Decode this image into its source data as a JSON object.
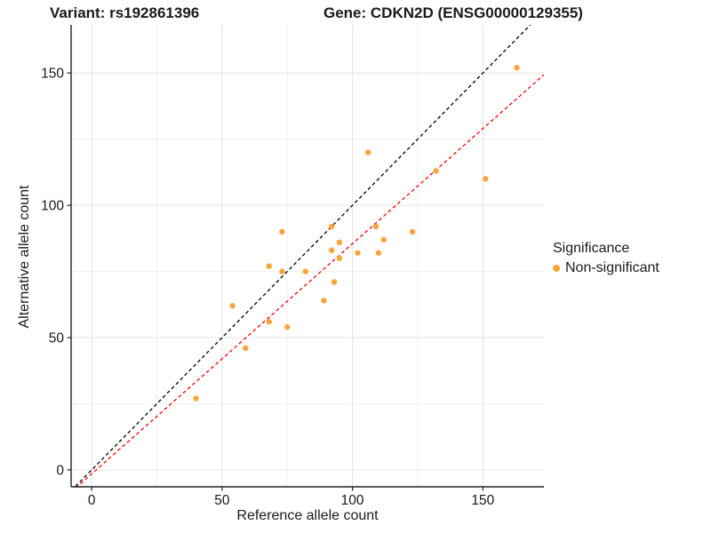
{
  "titles": {
    "variant": "Variant: rs192861396",
    "gene": "Gene: CDKN2D (ENSG00000129355)"
  },
  "legend": {
    "title": "Significance",
    "items": [
      {
        "label": "Non-significant",
        "color": "#FAA43A"
      }
    ]
  },
  "colors": {
    "point": "#FAA43A",
    "identity_line": "#000000",
    "fit_line": "#FF0000",
    "major_grid": "#e4e4e4",
    "minor_grid": "#f0f0f0",
    "axis_line": "#222222",
    "text": "#1a1a1a"
  },
  "chart_data": {
    "type": "scatter",
    "title": "Variant: rs192861396 | Gene: CDKN2D (ENSG00000129355)",
    "xlabel": "Reference allele count",
    "ylabel": "Alternative allele count",
    "xlim": [
      -7.9,
      173.4
    ],
    "ylim": [
      -6.4,
      168.2
    ],
    "x_ticks": [
      0,
      50,
      100,
      150
    ],
    "x_minor": [
      25,
      75,
      125
    ],
    "y_ticks": [
      0,
      50,
      100,
      150
    ],
    "y_minor": [
      25,
      75,
      125
    ],
    "grid": true,
    "legend_position": "right",
    "series": [
      {
        "name": "Non-significant",
        "color": "#FAA43A",
        "points": [
          [
            40,
            27
          ],
          [
            54,
            62
          ],
          [
            59,
            46
          ],
          [
            68,
            56
          ],
          [
            75,
            54
          ],
          [
            68,
            77
          ],
          [
            73,
            75
          ],
          [
            82,
            75
          ],
          [
            73,
            90
          ],
          [
            93,
            71
          ],
          [
            89,
            64
          ],
          [
            92,
            92
          ],
          [
            95,
            86
          ],
          [
            92,
            83
          ],
          [
            95,
            80
          ],
          [
            102,
            82
          ],
          [
            109,
            92
          ],
          [
            112,
            87
          ],
          [
            110,
            82
          ],
          [
            123,
            90
          ],
          [
            106,
            120
          ],
          [
            132,
            113
          ],
          [
            151,
            110
          ],
          [
            163,
            152
          ]
        ]
      }
    ],
    "lines": [
      {
        "name": "identity",
        "color": "#000000",
        "dashed": true,
        "slope": 1,
        "intercept": 0
      },
      {
        "name": "fit",
        "color": "#FF0000",
        "dashed": true,
        "slope": 0.87,
        "intercept": -1.5
      }
    ]
  }
}
